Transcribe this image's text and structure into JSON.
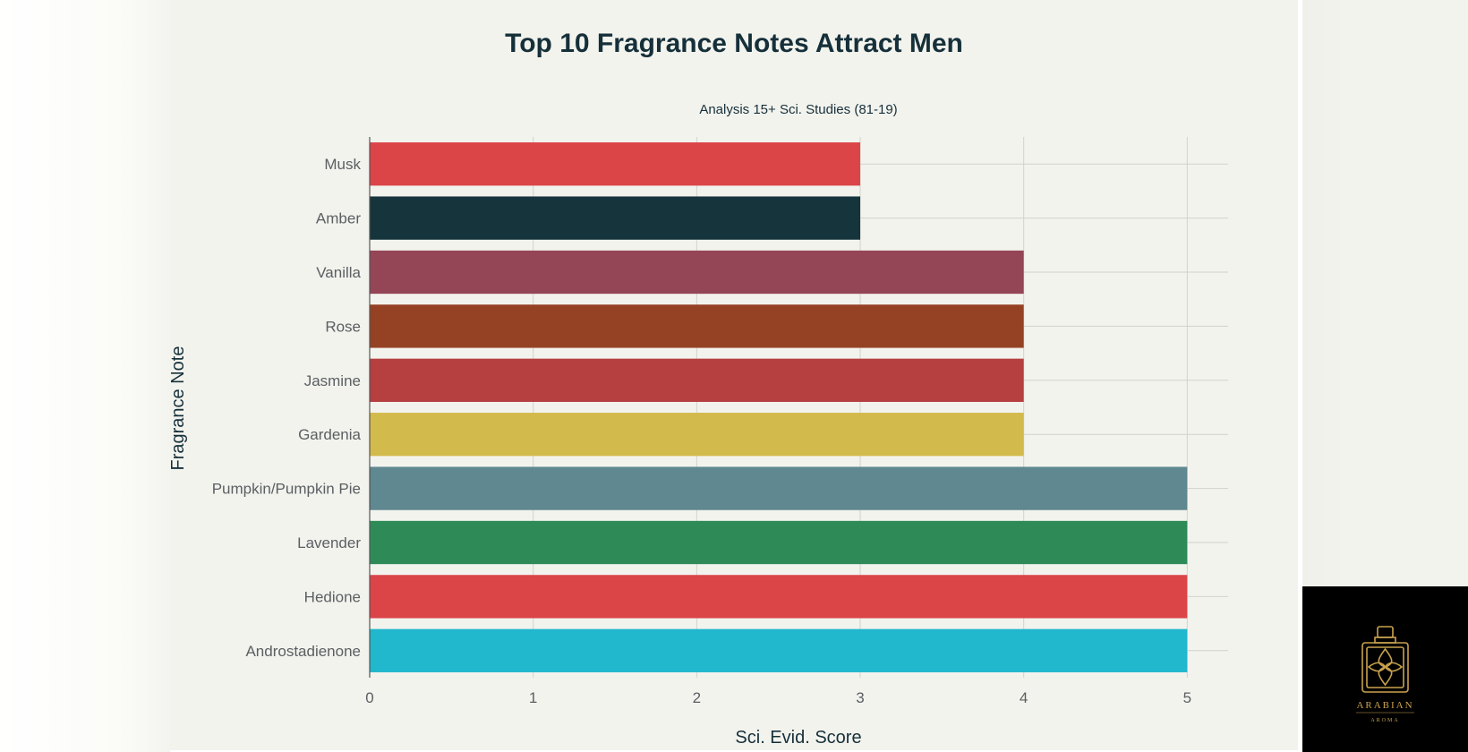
{
  "chart_data": {
    "type": "bar",
    "orientation": "horizontal",
    "title": "Top 10 Fragrance Notes Attract Men",
    "subtitle": "Analysis 15+ Sci. Studies (81-19)",
    "xlabel": "Sci. Evid. Score",
    "ylabel": "Fragrance Note",
    "xlim": [
      0,
      5.25
    ],
    "x_ticks": [
      0,
      1,
      2,
      3,
      4,
      5
    ],
    "grid": true,
    "categories": [
      "Musk",
      "Amber",
      "Vanilla",
      "Rose",
      "Jasmine",
      "Gardenia",
      "Pumpkin/Pumpkin Pie",
      "Lavender",
      "Hedione",
      "Androstadienone"
    ],
    "values": [
      3,
      3,
      4,
      4,
      4,
      4,
      5,
      5,
      5,
      5
    ],
    "colors": [
      "#db4548",
      "#16343c",
      "#944556",
      "#954224",
      "#b5403f",
      "#d3ba4c",
      "#5f8890",
      "#2e8b57",
      "#db4548",
      "#21b7cd"
    ]
  },
  "logo": {
    "brand": "ARABIAN",
    "tagline": "AROMA",
    "icon": "perfume-bottle-icon"
  }
}
